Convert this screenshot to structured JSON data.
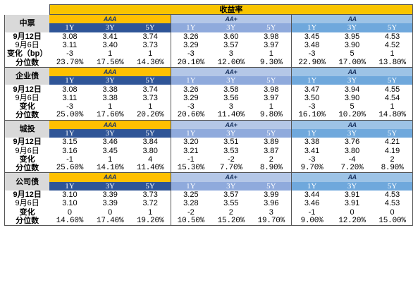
{
  "table": {
    "header_title": "收益率",
    "grades": [
      "AAA",
      "AA+",
      "AA"
    ],
    "tenors": [
      "1Y",
      "3Y",
      "5Y"
    ],
    "sections": [
      {
        "name": "中票",
        "rows": [
          {
            "label": "9月12日",
            "values": [
              "3.08",
              "3.41",
              "3.74",
              "3.26",
              "3.60",
              "3.98",
              "3.45",
              "3.95",
              "4.53"
            ]
          },
          {
            "label": "9月6日",
            "values": [
              "3.11",
              "3.40",
              "3.73",
              "3.29",
              "3.57",
              "3.97",
              "3.48",
              "3.90",
              "4.52"
            ]
          },
          {
            "label": "变化（bp）",
            "values": [
              "-3",
              "1",
              "1",
              "-3",
              "3",
              "1",
              "-3",
              "5",
              "1"
            ]
          },
          {
            "label": "分位数",
            "values": [
              "23.70%",
              "17.50%",
              "14.30%",
              "20.10%",
              "12.00%",
              "9.30%",
              "22.90%",
              "17.00%",
              "13.80%"
            ]
          }
        ]
      },
      {
        "name": "企业债",
        "rows": [
          {
            "label": "9月12日",
            "values": [
              "3.08",
              "3.38",
              "3.74",
              "3.26",
              "3.58",
              "3.98",
              "3.47",
              "3.94",
              "4.55"
            ]
          },
          {
            "label": "9月6日",
            "values": [
              "3.11",
              "3.38",
              "3.73",
              "3.29",
              "3.56",
              "3.97",
              "3.50",
              "3.90",
              "4.54"
            ]
          },
          {
            "label": "变化",
            "values": [
              "-3",
              "1",
              "1",
              "-3",
              "3",
              "1",
              "-3",
              "5",
              "1"
            ]
          },
          {
            "label": "分位数",
            "values": [
              "25.00%",
              "17.60%",
              "20.20%",
              "20.60%",
              "11.40%",
              "9.80%",
              "16.10%",
              "10.20%",
              "14.80%"
            ]
          }
        ]
      },
      {
        "name": "城投",
        "rows": [
          {
            "label": "9月12日",
            "values": [
              "3.15",
              "3.46",
              "3.84",
              "3.20",
              "3.51",
              "3.89",
              "3.38",
              "3.76",
              "4.21"
            ]
          },
          {
            "label": "9月6日",
            "values": [
              "3.16",
              "3.45",
              "3.80",
              "3.21",
              "3.53",
              "3.87",
              "3.41",
              "3.80",
              "4.19"
            ]
          },
          {
            "label": "变化",
            "values": [
              "-1",
              "1",
              "4",
              "-1",
              "-2",
              "2",
              "-3",
              "-4",
              "2"
            ]
          },
          {
            "label": "分位数",
            "values": [
              "25.60%",
              "14.10%",
              "11.40%",
              "15.30%",
              "7.70%",
              "8.90%",
              "9.70%",
              "7.20%",
              "8.90%"
            ]
          }
        ]
      },
      {
        "name": "公司债",
        "rows": [
          {
            "label": "9月12日",
            "values": [
              "3.10",
              "3.39",
              "3.73",
              "3.25",
              "3.57",
              "3.99",
              "3.44",
              "3.91",
              "4.53"
            ]
          },
          {
            "label": "9月6日",
            "values": [
              "3.10",
              "3.39",
              "3.72",
              "3.28",
              "3.55",
              "3.96",
              "3.46",
              "3.91",
              "4.53"
            ]
          },
          {
            "label": "变化",
            "values": [
              "0",
              "0",
              "1",
              "-2",
              "2",
              "3",
              "-1",
              "0",
              "0"
            ]
          },
          {
            "label": "分位数",
            "values": [
              "14.60%",
              "17.40%",
              "19.20%",
              "10.50%",
              "15.20%",
              "19.70%",
              "9.00%",
              "12.20%",
              "15.00%"
            ]
          }
        ]
      }
    ]
  }
}
